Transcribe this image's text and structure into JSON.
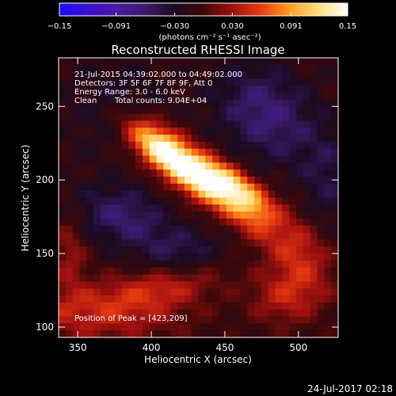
{
  "chart_data": {
    "type": "heatmap",
    "title": "Reconstructed RHESSI Image",
    "xlabel": "Heliocentric X (arcsec)",
    "ylabel": "Heliocentric Y (arcsec)",
    "xlim": [
      337,
      527
    ],
    "ylim": [
      93,
      283
    ],
    "x_ticks": [
      350,
      400,
      450,
      500
    ],
    "y_ticks": [
      100,
      150,
      200,
      250
    ],
    "colorbar": {
      "label": "(photons cm⁻² s⁻¹ asec⁻²)",
      "range": [
        -0.15,
        0.15
      ],
      "ticks": [
        "−0.15",
        "−0.091",
        "−0.030",
        "0.030",
        "0.091",
        "0.15"
      ],
      "colormap": [
        "#1e0aff",
        "#3a0fd0",
        "#4a1aa0",
        "#3a1a6a",
        "#1a0a20",
        "#400808",
        "#a01010",
        "#e83a10",
        "#ffa020",
        "#ffe080",
        "#ffffff"
      ]
    },
    "peak": [
      423,
      209
    ],
    "peak_value": 0.15,
    "sources": [
      {
        "x": 423,
        "y": 208,
        "sx": 30,
        "sy": 9,
        "angle": -38,
        "amp": 0.155
      },
      {
        "x": 455,
        "y": 196,
        "sx": 20,
        "sy": 8,
        "angle": -35,
        "amp": 0.11
      },
      {
        "x": 405,
        "y": 224,
        "sx": 16,
        "sy": 9,
        "angle": -35,
        "amp": 0.05
      },
      {
        "x": 500,
        "y": 150,
        "sx": 22,
        "sy": 14,
        "angle": -60,
        "amp": 0.055
      },
      {
        "x": 490,
        "y": 120,
        "sx": 16,
        "sy": 13,
        "angle": 0,
        "amp": 0.045
      },
      {
        "x": 470,
        "y": 175,
        "sx": 14,
        "sy": 10,
        "angle": -50,
        "amp": 0.035
      },
      {
        "x": 365,
        "y": 110,
        "sx": 40,
        "sy": 14,
        "angle": 0,
        "amp": 0.05
      },
      {
        "x": 410,
        "y": 128,
        "sx": 28,
        "sy": 10,
        "angle": 10,
        "amp": 0.045
      },
      {
        "x": 345,
        "y": 150,
        "sx": 8,
        "sy": 20,
        "angle": 0,
        "amp": 0.035
      },
      {
        "x": 380,
        "y": 175,
        "sx": 22,
        "sy": 14,
        "angle": -15,
        "amp": -0.05
      },
      {
        "x": 420,
        "y": 150,
        "sx": 20,
        "sy": 12,
        "angle": 0,
        "amp": -0.035
      },
      {
        "x": 478,
        "y": 245,
        "sx": 26,
        "sy": 20,
        "angle": -40,
        "amp": -0.055
      },
      {
        "x": 375,
        "y": 250,
        "sx": 22,
        "sy": 22,
        "angle": 0,
        "amp": -0.025
      },
      {
        "x": 520,
        "y": 200,
        "sx": 14,
        "sy": 24,
        "angle": 0,
        "amp": -0.03
      }
    ],
    "background": -0.01
  },
  "annotations": {
    "time_range": "21-Jul-2015 04:39:02.000 to 04:49:02.000",
    "detectors": "Detectors: 3F 5F 6F 7F 8F 9F, Att 0",
    "energy": "Energy Range: 3.0 - 6.0 keV",
    "method": "Clean",
    "counts": "Total counts: 9.04E+04",
    "peak_label": "Position of Peak = [423,209]"
  },
  "plot_date": "24-Jul-2017 02:18"
}
